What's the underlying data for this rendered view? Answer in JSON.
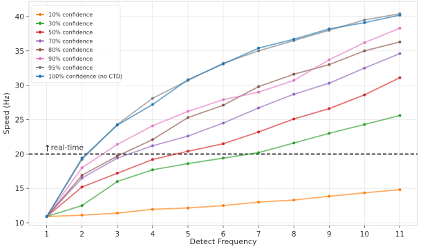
{
  "chart_data": {
    "type": "line",
    "title": "",
    "xlabel": "Detect Frequency",
    "ylabel": "Speed (Hz)",
    "x": [
      1,
      2,
      3,
      4,
      5,
      6,
      7,
      8,
      9,
      10,
      11
    ],
    "xlim": [
      0.5,
      11.5
    ],
    "ylim": [
      9.6,
      42.2
    ],
    "xticks": [
      "1",
      "2",
      "3",
      "4",
      "5",
      "6",
      "7",
      "8",
      "9",
      "10",
      "11"
    ],
    "yticks": [
      "10",
      "15",
      "20",
      "25",
      "30",
      "35",
      "40"
    ],
    "grid": true,
    "legend_position": "top-left",
    "series": [
      {
        "name": "10% confidence",
        "color": "#ff7f0e",
        "values": [
          10.9,
          11.1,
          11.4,
          11.95,
          12.15,
          12.5,
          13.0,
          13.3,
          13.85,
          14.35,
          14.8
        ]
      },
      {
        "name": "30% confidence",
        "color": "#2ca02c",
        "values": [
          10.9,
          12.5,
          16.0,
          17.7,
          18.6,
          19.4,
          20.2,
          21.6,
          23.0,
          24.3,
          25.6
        ]
      },
      {
        "name": "50% confidence",
        "color": "#d62728",
        "values": [
          10.9,
          15.2,
          17.2,
          19.2,
          20.4,
          21.5,
          23.2,
          25.1,
          26.6,
          28.6,
          31.1
        ]
      },
      {
        "name": "70% confidence",
        "color": "#9467bd",
        "values": [
          10.9,
          16.5,
          19.4,
          21.2,
          22.6,
          24.5,
          26.7,
          28.7,
          30.3,
          32.5,
          34.6
        ]
      },
      {
        "name": "80% confidence",
        "color": "#8c564b",
        "values": [
          10.9,
          16.9,
          19.7,
          22.1,
          25.3,
          27.1,
          29.8,
          31.6,
          33.0,
          35.0,
          36.3
        ]
      },
      {
        "name": "90% confidence",
        "color": "#e377c2",
        "values": [
          10.9,
          18.0,
          21.4,
          24.1,
          26.2,
          27.9,
          29.0,
          30.7,
          33.7,
          36.2,
          38.3
        ]
      },
      {
        "name": "95% confidence",
        "color": "#7f7f7f",
        "values": [
          10.9,
          19.2,
          24.3,
          28.1,
          30.7,
          33.2,
          35.0,
          36.5,
          38.0,
          39.5,
          40.4
        ]
      },
      {
        "name": "100% confidence (no CTD)",
        "color": "#1f77b4",
        "values": [
          10.9,
          19.4,
          24.2,
          27.2,
          30.8,
          33.1,
          35.4,
          36.7,
          38.2,
          39.1,
          40.2
        ]
      }
    ],
    "reference_line": {
      "y": 20,
      "label": "real-time",
      "arrow": "↑",
      "color": "#000000",
      "style": "dashed"
    }
  }
}
